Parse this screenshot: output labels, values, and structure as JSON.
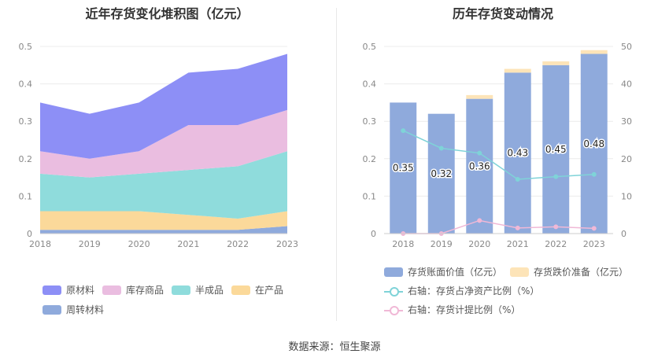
{
  "chart_data": [
    {
      "type": "area",
      "title": "近年存货变化堆积图（亿元）",
      "categories": [
        "2018",
        "2019",
        "2020",
        "2021",
        "2022",
        "2023"
      ],
      "stacked": true,
      "ylim": [
        0,
        0.5
      ],
      "yticks": [
        "0",
        "0.1",
        "0.2",
        "0.3",
        "0.4",
        "0.5"
      ],
      "grid": true,
      "legend_position": "bottom",
      "series": [
        {
          "name": "周转材料",
          "color": "#8faadc",
          "values": [
            0.01,
            0.01,
            0.01,
            0.01,
            0.01,
            0.02
          ]
        },
        {
          "name": "在产品",
          "color": "#fbd99a",
          "values": [
            0.05,
            0.05,
            0.05,
            0.04,
            0.03,
            0.04
          ]
        },
        {
          "name": "半成品",
          "color": "#8fdcdc",
          "values": [
            0.1,
            0.09,
            0.1,
            0.12,
            0.14,
            0.16
          ]
        },
        {
          "name": "库存商品",
          "color": "#eabde0",
          "values": [
            0.06,
            0.05,
            0.06,
            0.12,
            0.11,
            0.11
          ]
        },
        {
          "name": "原材料",
          "color": "#8d8ff6",
          "values": [
            0.13,
            0.12,
            0.13,
            0.14,
            0.15,
            0.15
          ]
        }
      ]
    },
    {
      "type": "bar",
      "title": "历年存货变动情况",
      "categories": [
        "2018",
        "2019",
        "2020",
        "2021",
        "2022",
        "2023"
      ],
      "ylim": [
        0,
        0.5
      ],
      "yticks": [
        "0",
        "0.1",
        "0.2",
        "0.3",
        "0.4",
        "0.5"
      ],
      "y2lim": [
        0,
        50
      ],
      "y2ticks": [
        "0",
        "10",
        "20",
        "30",
        "40",
        "50"
      ],
      "grid": true,
      "legend_position": "bottom",
      "series": [
        {
          "name": "存货账面价值（亿元）",
          "kind": "bar",
          "color": "#8faadc",
          "values": [
            0.35,
            0.32,
            0.36,
            0.43,
            0.45,
            0.48
          ],
          "labels": [
            "0.35",
            "0.32",
            "0.36",
            "0.43",
            "0.45",
            "0.48"
          ]
        },
        {
          "name": "存货跌价准备（亿元）",
          "kind": "bar-stack",
          "color": "#fde4b8",
          "values": [
            0,
            0,
            0.01,
            0.01,
            0.01,
            0.01
          ]
        },
        {
          "name": "右轴：存货占净资产比例（%）",
          "kind": "line",
          "axis": "right",
          "color": "#7fd3d8",
          "values": [
            27.5,
            22.8,
            21.5,
            14.5,
            15.2,
            15.8
          ]
        },
        {
          "name": "右轴：存货计提比例（%）",
          "kind": "line",
          "axis": "right",
          "color": "#f0b8d6",
          "values": [
            0,
            0,
            3.5,
            1.5,
            1.8,
            1.4
          ]
        }
      ]
    }
  ],
  "source_text": "数据来源：恒生聚源"
}
